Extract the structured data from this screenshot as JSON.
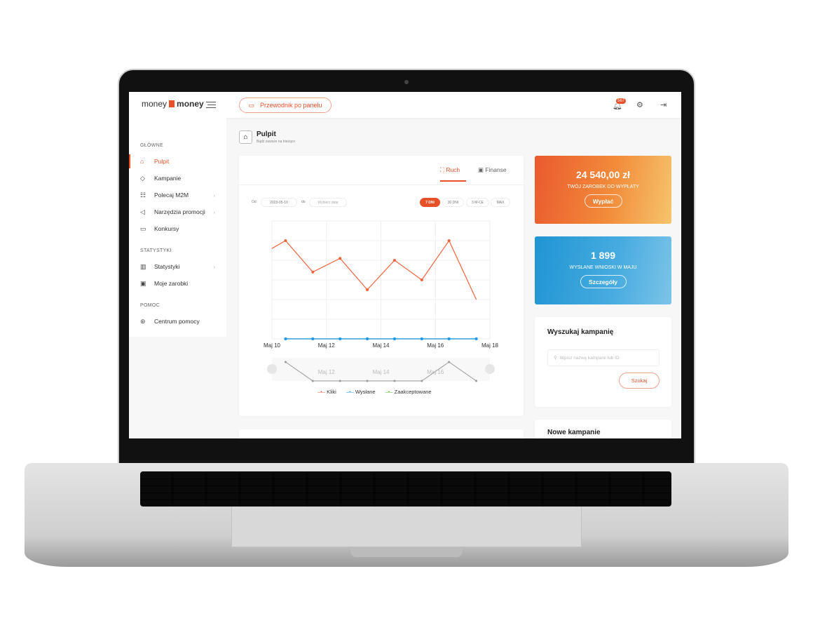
{
  "header": {
    "logo_left": "money",
    "logo_right": "money",
    "guide_button": "Przewodnik po panelu",
    "notifications_count": "567"
  },
  "sidebar": {
    "sections": [
      {
        "title": "GŁÓWNE",
        "items": [
          {
            "label": "Pulpit",
            "icon": "home-icon",
            "active": true
          },
          {
            "label": "Kampanie",
            "icon": "tag-icon"
          },
          {
            "label": "Polecaj M2M",
            "icon": "sitemap-icon",
            "chevron": true
          },
          {
            "label": "Narzędzia promocji",
            "icon": "megaphone-icon",
            "chevron": true
          },
          {
            "label": "Konkursy",
            "icon": "ticket-icon"
          }
        ]
      },
      {
        "title": "STATYSTYKI",
        "items": [
          {
            "label": "Statystyki",
            "icon": "bar-chart-icon",
            "chevron": true
          },
          {
            "label": "Moje zarobki",
            "icon": "money-icon"
          }
        ]
      },
      {
        "title": "POMOC",
        "items": [
          {
            "label": "Centrum pomocy",
            "icon": "lifebuoy-icon"
          }
        ]
      }
    ]
  },
  "page": {
    "title": "Pulpit",
    "subtitle": "Bądź zawsze na bieżąco"
  },
  "chart_card": {
    "tabs": [
      {
        "label": "Ruch",
        "active": true
      },
      {
        "label": "Finanse"
      }
    ],
    "from_label": "Od",
    "from_value": "2023-05-10",
    "to_label": "do",
    "to_placeholder": "Wybierz datę",
    "ranges": [
      {
        "label": "7 DNI",
        "active": true
      },
      {
        "label": "30 DNI"
      },
      {
        "label": "3 M-CE"
      },
      {
        "label": "MAX"
      }
    ]
  },
  "chart_data": {
    "type": "line",
    "x_ticks": [
      "Maj 10",
      "Maj 12",
      "Maj 14",
      "Maj 16",
      "Maj 18"
    ],
    "navigator_ticks": [
      "Maj 12",
      "Maj 14",
      "Maj 16"
    ],
    "x": [
      10.5,
      11.5,
      12.5,
      13.5,
      14.5,
      15.5,
      16.5,
      17.5
    ],
    "series": [
      {
        "name": "Kliki",
        "color": "#f0643c",
        "values": [
          5,
          3.4,
          4.1,
          2.5,
          4,
          3,
          5,
          2
        ]
      },
      {
        "name": "Wysłane",
        "color": "#2196f3",
        "values": [
          0,
          0,
          0,
          0,
          0,
          0,
          0,
          0
        ]
      },
      {
        "name": "Zaakceptowane",
        "color": "#5cb82e",
        "values": [
          0,
          0,
          0,
          0,
          0,
          0,
          0,
          0
        ]
      }
    ],
    "xlim": [
      10,
      18
    ],
    "ylim": [
      0,
      6
    ],
    "grid": true,
    "legend": "bottom"
  },
  "earnings": {
    "value": "24 540,00 zł",
    "label": "TWÓJ ZAROBEK DO WYPŁATY",
    "button": "Wypłać"
  },
  "applications": {
    "value": "1 899",
    "label": "WYSŁANE WNIOSKI W MAJU",
    "button": "Szczegóły"
  },
  "search": {
    "title": "Wyszukaj kampanię",
    "placeholder": "Wpisz nazwę kampanii lub ID",
    "button": "Szukaj"
  },
  "new_campaigns": {
    "title": "Nowe kampanie"
  },
  "colors": {
    "accent": "#e8502a",
    "blue": "#2a9fd8"
  }
}
